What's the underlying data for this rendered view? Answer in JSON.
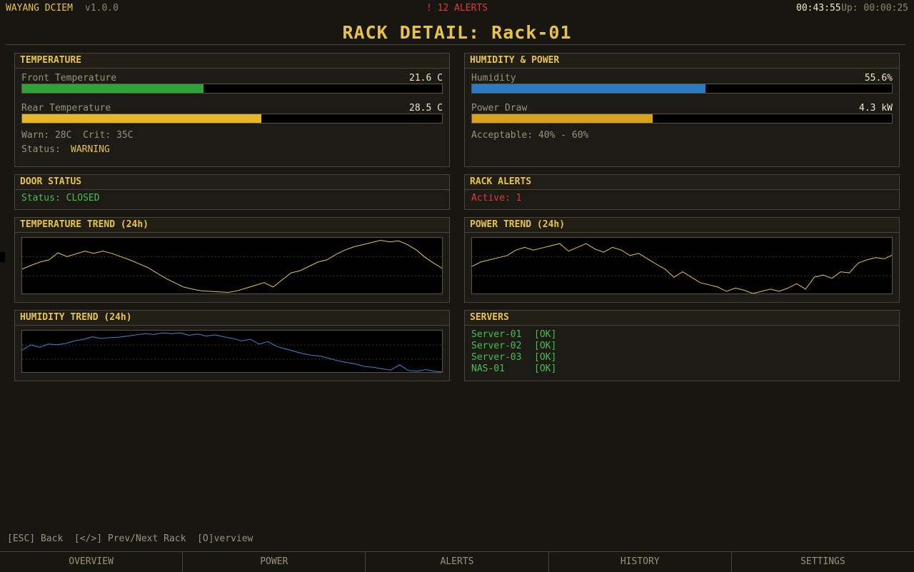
{
  "topbar": {
    "app_name": "WAYANG DCIEM",
    "version": "v1.0.0",
    "alerts": "! 12 ALERTS",
    "clock": "00:43:55",
    "uptime": "Up: 00:00:25"
  },
  "page_title": "RACK DETAIL: Rack-01",
  "temperature": {
    "title": "TEMPERATURE",
    "front_label": "Front Temperature",
    "front_value": "21.6 C",
    "front_level": 0.432,
    "rear_label": "Rear Temperature",
    "rear_value": "28.5 C",
    "rear_level": 0.57,
    "thresholds": "Warn: 28C  Crit: 35C",
    "status_label": "Status:",
    "status_value": "WARNING"
  },
  "humidity_power": {
    "title": "HUMIDITY & POWER",
    "humidity_label": "Humidity",
    "humidity_value": "55.6%",
    "humidity_level": 0.556,
    "power_label": "Power Draw",
    "power_value": "4.3 kW",
    "power_level": 0.43,
    "acceptable": "Acceptable: 40% - 60%"
  },
  "door": {
    "title": "DOOR STATUS",
    "status": "Status: CLOSED"
  },
  "rack_alerts": {
    "title": "RACK ALERTS",
    "active": "Active: 1"
  },
  "temperature_trend": {
    "title": "TEMPERATURE TREND (24h)"
  },
  "power_trend": {
    "title": "POWER TREND (24h)"
  },
  "humidity_trend": {
    "title": "HUMIDITY TREND (24h)"
  },
  "servers": {
    "title": "SERVERS",
    "items": [
      {
        "name": "Server-01",
        "status": "[OK]"
      },
      {
        "name": "Server-02",
        "status": "[OK]"
      },
      {
        "name": "Server-03",
        "status": "[OK]"
      },
      {
        "name": "NAS-01",
        "status": "[OK]"
      }
    ]
  },
  "footer_help": "[ESC] Back  [</>] Prev/Next Rack  [O]verview",
  "nav": [
    "OVERVIEW",
    "POWER",
    "ALERTS",
    "HISTORY",
    "SETTINGS"
  ],
  "colors": {
    "accent": "#e8c34a",
    "ok": "#4cbe50",
    "alert": "#e0393b",
    "temp_line": "#e8c34a",
    "power_line": "#e8c34a",
    "humidity_line": "#3a86d4",
    "front_fill": "#2fa23a",
    "rear_fill": "#e8b52a",
    "humidity_fill": "#2a7bc4",
    "power_fill": "#d9a01e"
  },
  "chart_data": [
    {
      "type": "line",
      "title": "TEMPERATURE TREND (24h)",
      "series": [
        {
          "values": [
            0.45,
            0.52,
            0.58,
            0.62,
            0.75,
            0.68,
            0.73,
            0.78,
            0.74,
            0.78,
            0.74,
            0.68,
            0.62,
            0.55,
            0.48,
            0.38,
            0.28,
            0.2,
            0.12,
            0.08,
            0.05,
            0.04,
            0.03,
            0.02,
            0.05,
            0.1,
            0.15,
            0.2,
            0.12,
            0.25,
            0.38,
            0.42,
            0.5,
            0.58,
            0.62,
            0.72,
            0.8,
            0.86,
            0.9,
            0.94,
            0.98,
            0.95,
            0.97,
            0.9,
            0.8,
            0.66,
            0.55,
            0.45
          ]
        }
      ]
    },
    {
      "type": "line",
      "title": "POWER TREND (24h)",
      "series": [
        {
          "values": [
            0.5,
            0.58,
            0.62,
            0.66,
            0.7,
            0.8,
            0.85,
            0.8,
            0.84,
            0.88,
            0.92,
            0.78,
            0.85,
            0.92,
            0.82,
            0.76,
            0.85,
            0.8,
            0.7,
            0.74,
            0.64,
            0.54,
            0.45,
            0.3,
            0.4,
            0.3,
            0.2,
            0.16,
            0.12,
            0.04,
            0.1,
            0.06,
            0.0,
            0.04,
            0.08,
            0.04,
            0.1,
            0.18,
            0.08,
            0.3,
            0.34,
            0.28,
            0.4,
            0.38,
            0.56,
            0.62,
            0.66,
            0.64,
            0.72
          ]
        }
      ]
    },
    {
      "type": "line",
      "title": "HUMIDITY TREND (24h)",
      "series": [
        {
          "values": [
            0.55,
            0.68,
            0.62,
            0.7,
            0.68,
            0.72,
            0.78,
            0.82,
            0.88,
            0.84,
            0.86,
            0.87,
            0.9,
            0.93,
            0.96,
            0.94,
            0.98,
            0.96,
            0.98,
            0.92,
            0.95,
            0.9,
            0.93,
            0.88,
            0.84,
            0.78,
            0.82,
            0.7,
            0.76,
            0.64,
            0.58,
            0.52,
            0.46,
            0.42,
            0.4,
            0.34,
            0.28,
            0.24,
            0.2,
            0.14,
            0.12,
            0.08,
            0.05,
            0.18,
            0.04,
            0.02,
            0.06,
            0.02,
            0.0
          ]
        }
      ]
    }
  ]
}
